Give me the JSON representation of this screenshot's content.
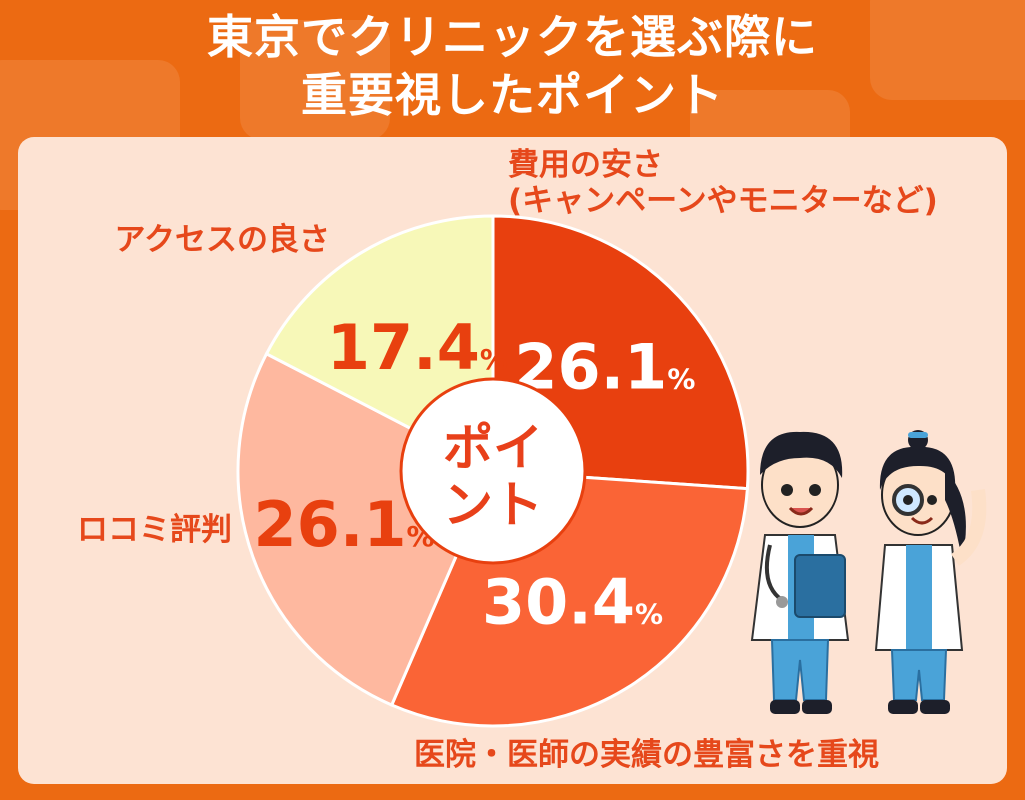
{
  "header": {
    "title_line1": "東京でクリニックを選ぶ際に",
    "title_line2": "重要視したポイント"
  },
  "center_label": {
    "line1": "ポイ",
    "line2": "ント"
  },
  "colors": {
    "background": "#ec6a12",
    "panel": "#fde3d3",
    "label_text": "#e6481b",
    "center_text": "#e8401a"
  },
  "illustration": {
    "icon": "two-doctors-illustration"
  },
  "chart_data": {
    "type": "pie",
    "title": "東京でクリニックを選ぶ際に重要視したポイント",
    "unit": "%",
    "start_angle_deg": 0,
    "direction": "clockwise",
    "center_hole": true,
    "slices": [
      {
        "label_lines": [
          "費用の安さ",
          "(キャンペーンやモニターなど)"
        ],
        "value": 26.1,
        "value_text": "26.1",
        "color": "#e8400f",
        "value_color": "#ffffff"
      },
      {
        "label_lines": [
          "医院・医師の実績の豊富さを重視"
        ],
        "value": 30.4,
        "value_text": "30.4",
        "color": "#fa6436",
        "value_color": "#ffffff"
      },
      {
        "label_lines": [
          "ロコミ評判"
        ],
        "value": 26.1,
        "value_text": "26.1",
        "color": "#feb89f",
        "value_color": "#e8400f"
      },
      {
        "label_lines": [
          "アクセスの良さ"
        ],
        "value": 17.4,
        "value_text": "17.4",
        "color": "#f7f8b8",
        "value_color": "#e8400f"
      }
    ]
  }
}
